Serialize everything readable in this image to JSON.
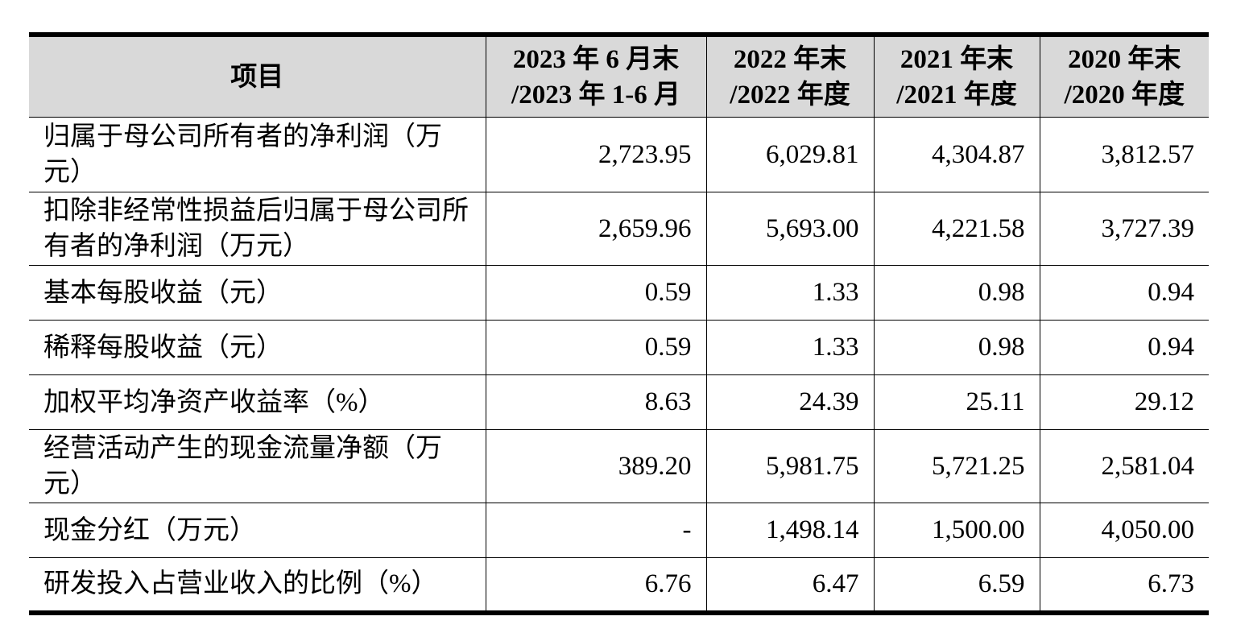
{
  "table": {
    "headers": [
      {
        "lines": [
          "项目"
        ]
      },
      {
        "lines": [
          "2023 年 6 月末",
          "/2023 年 1-6 月"
        ]
      },
      {
        "lines": [
          "2022 年末",
          "/2022 年度"
        ]
      },
      {
        "lines": [
          "2021 年末",
          "/2021 年度"
        ]
      },
      {
        "lines": [
          "2020 年末",
          "/2020 年度"
        ]
      }
    ],
    "rows": [
      {
        "label": "归属于母公司所有者的净利润（万元）",
        "values": [
          "2,723.95",
          "6,029.81",
          "4,304.87",
          "3,812.57"
        ]
      },
      {
        "label": "扣除非经常性损益后归属于母公司所有者的净利润（万元）",
        "values": [
          "2,659.96",
          "5,693.00",
          "4,221.58",
          "3,727.39"
        ]
      },
      {
        "label": "基本每股收益（元）",
        "values": [
          "0.59",
          "1.33",
          "0.98",
          "0.94"
        ]
      },
      {
        "label": "稀释每股收益（元）",
        "values": [
          "0.59",
          "1.33",
          "0.98",
          "0.94"
        ]
      },
      {
        "label": "加权平均净资产收益率（%）",
        "values": [
          "8.63",
          "24.39",
          "25.11",
          "29.12"
        ]
      },
      {
        "label": "经营活动产生的现金流量净额（万元）",
        "values": [
          "389.20",
          "5,981.75",
          "5,721.25",
          "2,581.04"
        ]
      },
      {
        "label": "现金分红（万元）",
        "values": [
          "-",
          "1,498.14",
          "1,500.00",
          "4,050.00"
        ]
      },
      {
        "label": "研发投入占营业收入的比例（%）",
        "values": [
          "6.76",
          "6.47",
          "6.59",
          "6.73"
        ]
      }
    ]
  }
}
